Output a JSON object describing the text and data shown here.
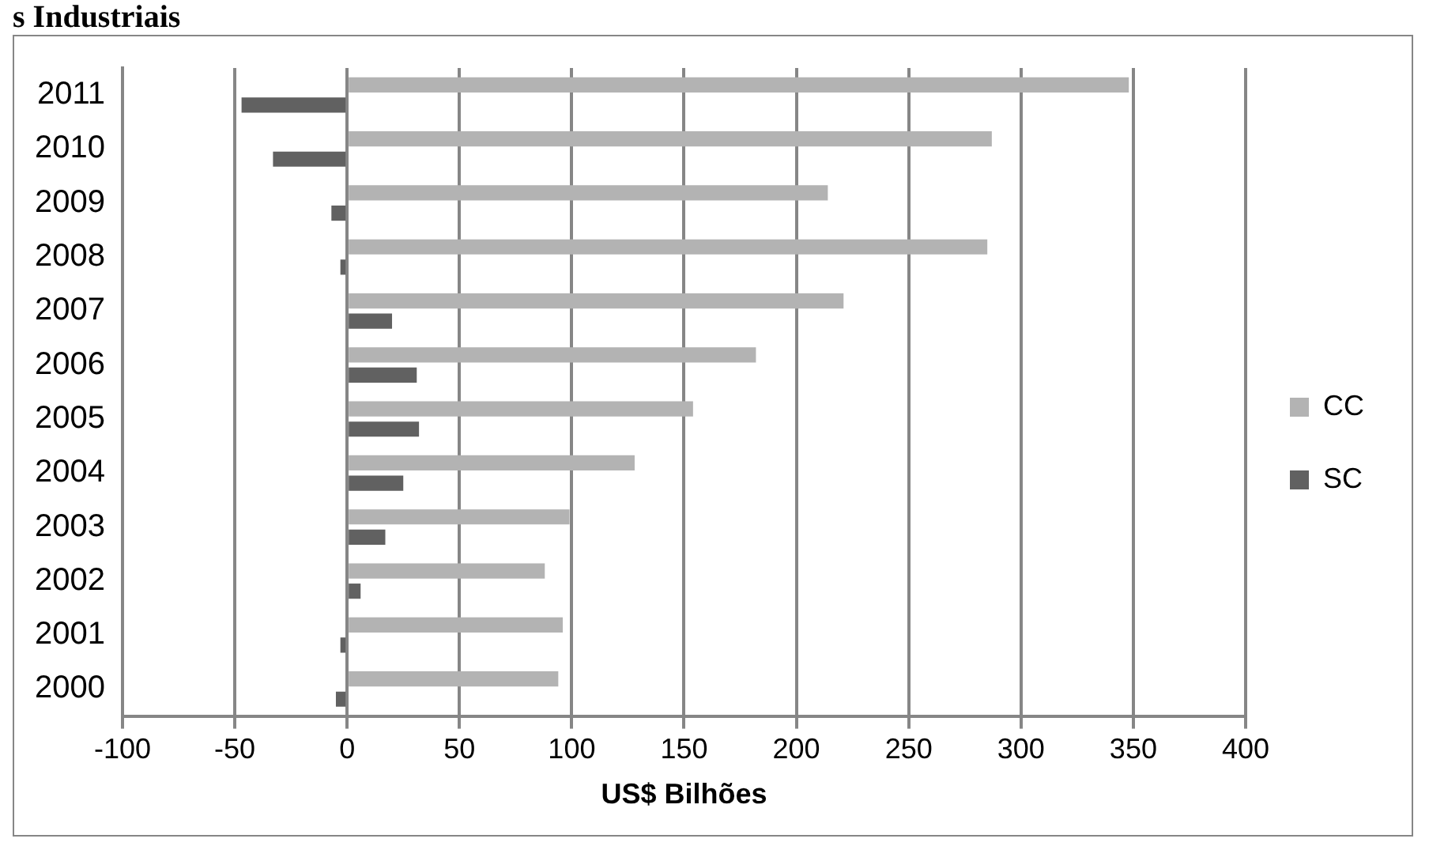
{
  "chart_data": {
    "type": "bar",
    "orientation": "horizontal",
    "title": "s Industriais",
    "xlabel": "US$ Bilhões",
    "categories": [
      "2011",
      "2010",
      "2009",
      "2008",
      "2007",
      "2006",
      "2005",
      "2004",
      "2003",
      "2002",
      "2001",
      "2000"
    ],
    "series": [
      {
        "name": "CC",
        "color": "#b3b3b3",
        "values": [
          348,
          287,
          214,
          285,
          221,
          182,
          154,
          128,
          99,
          88,
          96,
          94
        ]
      },
      {
        "name": "SC",
        "color": "#616161",
        "values": [
          -47,
          -33,
          -7,
          -3,
          20,
          31,
          32,
          25,
          17,
          6,
          -3,
          -5
        ]
      }
    ],
    "xlim": [
      -100,
      400
    ],
    "xticks": [
      -100,
      -50,
      0,
      50,
      100,
      150,
      200,
      250,
      300,
      350,
      400
    ],
    "grid": "x",
    "legend": "right"
  }
}
